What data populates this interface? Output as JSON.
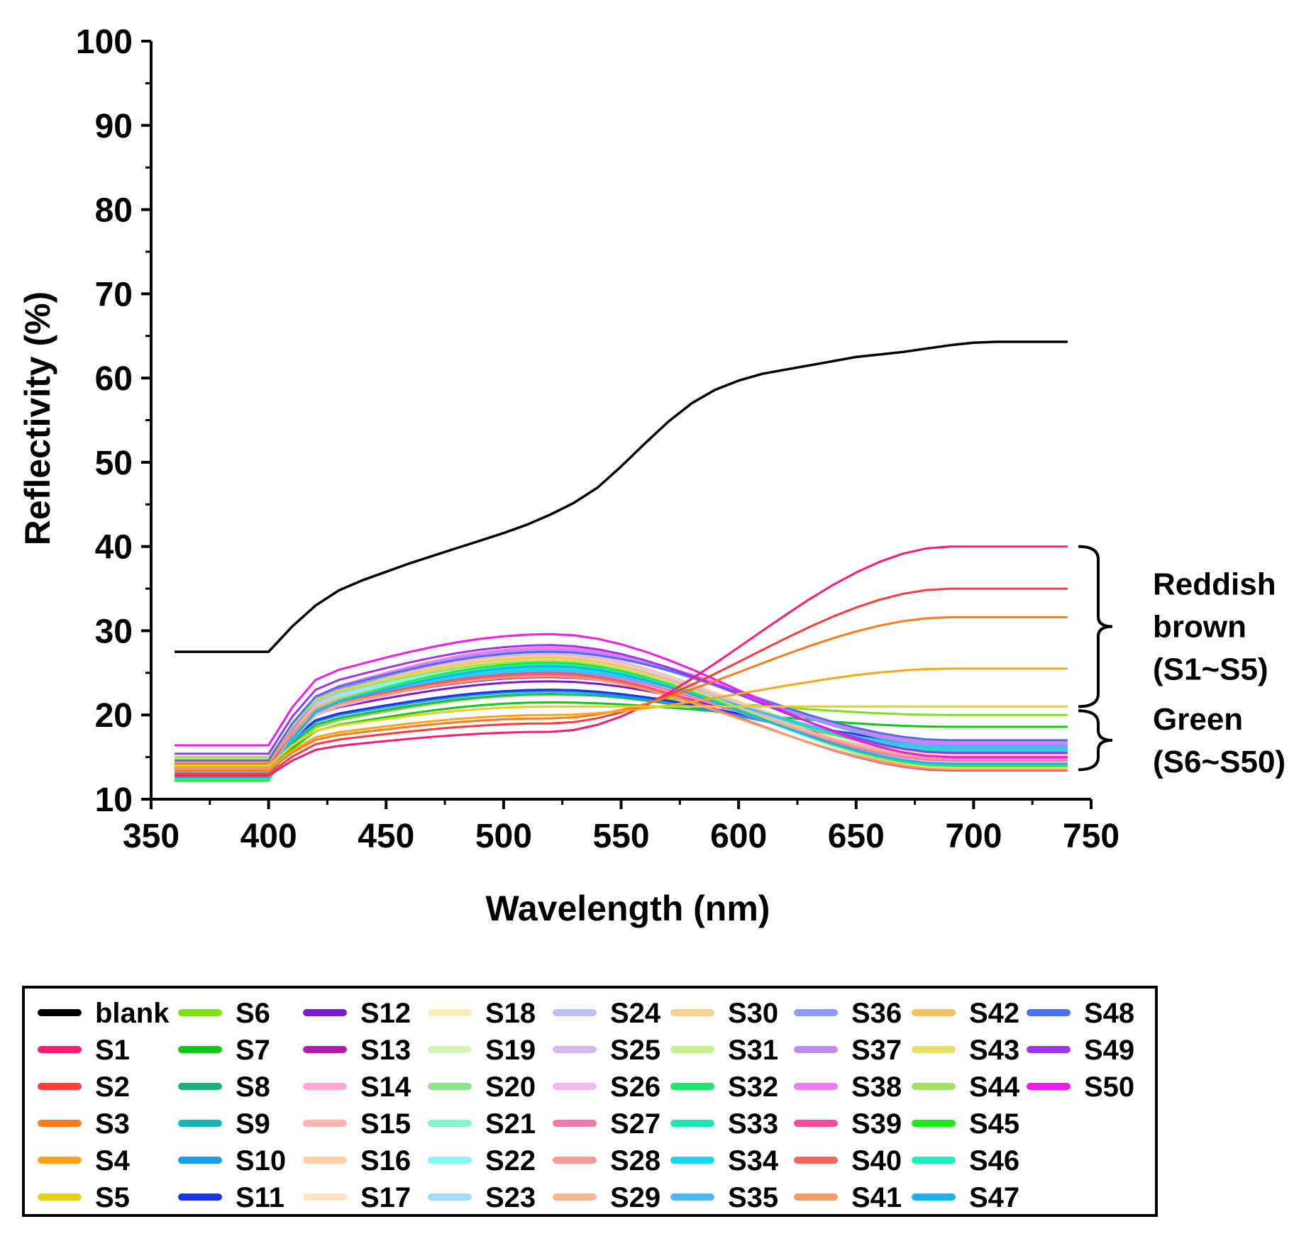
{
  "chart_data": {
    "type": "line",
    "title": "",
    "xlabel": "Wavelength (nm)",
    "ylabel": "Reflectivity (%)",
    "xlim": [
      350,
      750
    ],
    "ylim": [
      10,
      100
    ],
    "xticks": [
      350,
      400,
      450,
      500,
      550,
      600,
      650,
      700,
      750
    ],
    "yticks": [
      10,
      20,
      30,
      40,
      50,
      60,
      70,
      80,
      90,
      100
    ],
    "x": [
      360,
      370,
      380,
      390,
      400,
      410,
      420,
      430,
      440,
      450,
      460,
      470,
      480,
      490,
      500,
      510,
      520,
      530,
      540,
      550,
      560,
      570,
      580,
      590,
      600,
      610,
      620,
      630,
      640,
      650,
      660,
      670,
      680,
      690,
      700,
      710,
      720,
      730,
      740
    ],
    "grid": false,
    "legend_position": "bottom",
    "blank": {
      "name": "blank",
      "color": "#000000",
      "values": [
        27.5,
        27.5,
        27.5,
        27.5,
        27.5,
        30.5,
        33.0,
        34.8,
        36.0,
        37.0,
        38.0,
        38.9,
        39.8,
        40.7,
        41.6,
        42.6,
        43.8,
        45.2,
        47.0,
        49.5,
        52.2,
        54.8,
        57.0,
        58.6,
        59.7,
        60.5,
        61.0,
        61.5,
        62.0,
        62.5,
        62.8,
        63.1,
        63.5,
        63.9,
        64.2,
        64.3,
        64.3,
        64.3,
        64.3
      ]
    },
    "annotations": [
      {
        "label_lines": [
          "Reddish",
          "brown",
          "(S1~S5)"
        ],
        "y_range": [
          21,
          40
        ]
      },
      {
        "label_lines": [
          "Green",
          "(S6~S50)"
        ],
        "y_range": [
          13.5,
          20.5
        ]
      }
    ],
    "series": [
      {
        "name": "S1",
        "color": "#ff1a75",
        "start": 12.8,
        "peak": 18.0,
        "end": 40.0
      },
      {
        "name": "S2",
        "color": "#ff3b3b",
        "start": 13.0,
        "peak": 19.0,
        "end": 35.0
      },
      {
        "name": "S3",
        "color": "#ff7a1a",
        "start": 13.4,
        "peak": 19.6,
        "end": 31.6
      },
      {
        "name": "S4",
        "color": "#ffa31a",
        "start": 13.6,
        "peak": 20.0,
        "end": 25.5
      },
      {
        "name": "S5",
        "color": "#e6d11a",
        "start": 14.0,
        "peak": 21.0,
        "end": 21.0
      },
      {
        "name": "S6",
        "color": "#7ee21a",
        "start": 13.0,
        "peak": 22.4,
        "end": 20.0
      },
      {
        "name": "S7",
        "color": "#12c812",
        "start": 13.2,
        "peak": 21.5,
        "end": 18.6
      },
      {
        "name": "S8",
        "color": "#1ab27a",
        "start": 13.6,
        "peak": 22.5,
        "end": 17.0
      },
      {
        "name": "S9",
        "color": "#1ab2b2",
        "start": 13.8,
        "peak": 23.0,
        "end": 16.6
      },
      {
        "name": "S10",
        "color": "#1a9be6",
        "start": 14.0,
        "peak": 22.8,
        "end": 16.4
      },
      {
        "name": "S11",
        "color": "#1a33e6",
        "start": 14.2,
        "peak": 23.0,
        "end": 16.8
      },
      {
        "name": "S12",
        "color": "#7a1ad1",
        "start": 14.4,
        "peak": 24.0,
        "end": 16.2
      },
      {
        "name": "S13",
        "color": "#b21ab2",
        "start": 14.6,
        "peak": 24.5,
        "end": 15.8
      },
      {
        "name": "S14",
        "color": "#ffa8d6",
        "start": 13.0,
        "peak": 24.8,
        "end": 15.2
      },
      {
        "name": "S15",
        "color": "#ffb3b3",
        "start": 13.2,
        "peak": 25.0,
        "end": 15.0
      },
      {
        "name": "S16",
        "color": "#ffcfa8",
        "start": 13.4,
        "peak": 25.4,
        "end": 14.8
      },
      {
        "name": "S17",
        "color": "#ffe3c2",
        "start": 13.6,
        "peak": 25.6,
        "end": 14.6
      },
      {
        "name": "S18",
        "color": "#f5f0b8",
        "start": 13.8,
        "peak": 25.8,
        "end": 14.4
      },
      {
        "name": "S19",
        "color": "#d6f5b8",
        "start": 14.0,
        "peak": 26.0,
        "end": 14.2
      },
      {
        "name": "S20",
        "color": "#8ae68a",
        "start": 12.6,
        "peak": 26.2,
        "end": 14.0
      },
      {
        "name": "S21",
        "color": "#8af0d6",
        "start": 12.8,
        "peak": 26.4,
        "end": 13.8
      },
      {
        "name": "S22",
        "color": "#8af5f5",
        "start": 13.0,
        "peak": 26.6,
        "end": 13.6
      },
      {
        "name": "S23",
        "color": "#a8dcf5",
        "start": 13.2,
        "peak": 26.8,
        "end": 13.8
      },
      {
        "name": "S24",
        "color": "#b8c2f5",
        "start": 13.4,
        "peak": 27.0,
        "end": 14.0
      },
      {
        "name": "S25",
        "color": "#d6b8f0",
        "start": 13.6,
        "peak": 27.2,
        "end": 14.2
      },
      {
        "name": "S26",
        "color": "#f0b8f0",
        "start": 13.8,
        "peak": 27.4,
        "end": 14.4
      },
      {
        "name": "S27",
        "color": "#f07aab",
        "start": 14.0,
        "peak": 25.2,
        "end": 14.6
      },
      {
        "name": "S28",
        "color": "#f59a9a",
        "start": 14.2,
        "peak": 25.4,
        "end": 14.8
      },
      {
        "name": "S29",
        "color": "#f5b894",
        "start": 14.4,
        "peak": 25.6,
        "end": 15.0
      },
      {
        "name": "S30",
        "color": "#f5d194",
        "start": 14.6,
        "peak": 27.0,
        "end": 15.2
      },
      {
        "name": "S31",
        "color": "#c2f08a",
        "start": 12.4,
        "peak": 26.0,
        "end": 15.4
      },
      {
        "name": "S32",
        "color": "#1ae66b",
        "start": 12.6,
        "peak": 25.8,
        "end": 15.6
      },
      {
        "name": "S33",
        "color": "#1ae6b8",
        "start": 12.8,
        "peak": 25.6,
        "end": 15.8
      },
      {
        "name": "S34",
        "color": "#1ad6f0",
        "start": 13.0,
        "peak": 25.4,
        "end": 16.0
      },
      {
        "name": "S35",
        "color": "#4db8f0",
        "start": 13.2,
        "peak": 25.2,
        "end": 16.2
      },
      {
        "name": "S36",
        "color": "#8a9ef5",
        "start": 13.4,
        "peak": 27.6,
        "end": 16.4
      },
      {
        "name": "S37",
        "color": "#c28af0",
        "start": 13.6,
        "peak": 27.8,
        "end": 16.6
      },
      {
        "name": "S38",
        "color": "#f07af0",
        "start": 13.8,
        "peak": 28.0,
        "end": 16.8
      },
      {
        "name": "S39",
        "color": "#f04d9e",
        "start": 14.0,
        "peak": 25.0,
        "end": 13.4
      },
      {
        "name": "S40",
        "color": "#f0665c",
        "start": 14.2,
        "peak": 24.8,
        "end": 13.5
      },
      {
        "name": "S41",
        "color": "#f09e66",
        "start": 14.4,
        "peak": 24.6,
        "end": 13.6
      },
      {
        "name": "S42",
        "color": "#f0c266",
        "start": 14.6,
        "peak": 26.8,
        "end": 13.7
      },
      {
        "name": "S43",
        "color": "#e6e066",
        "start": 14.8,
        "peak": 26.6,
        "end": 13.8
      },
      {
        "name": "S44",
        "color": "#a3e066",
        "start": 15.0,
        "peak": 26.4,
        "end": 13.9
      },
      {
        "name": "S45",
        "color": "#1aeb1a",
        "start": 12.2,
        "peak": 26.2,
        "end": 14.0
      },
      {
        "name": "S46",
        "color": "#1af0b8",
        "start": 12.4,
        "peak": 26.0,
        "end": 14.1
      },
      {
        "name": "S47",
        "color": "#1ab2eb",
        "start": 12.6,
        "peak": 25.8,
        "end": 14.2
      },
      {
        "name": "S48",
        "color": "#4d70f0",
        "start": 14.6,
        "peak": 27.5,
        "end": 17.0
      },
      {
        "name": "S49",
        "color": "#9e33f0",
        "start": 15.4,
        "peak": 28.3,
        "end": 15.5
      },
      {
        "name": "S50",
        "color": "#f01af0",
        "start": 16.4,
        "peak": 29.6,
        "end": 15.0
      }
    ]
  }
}
